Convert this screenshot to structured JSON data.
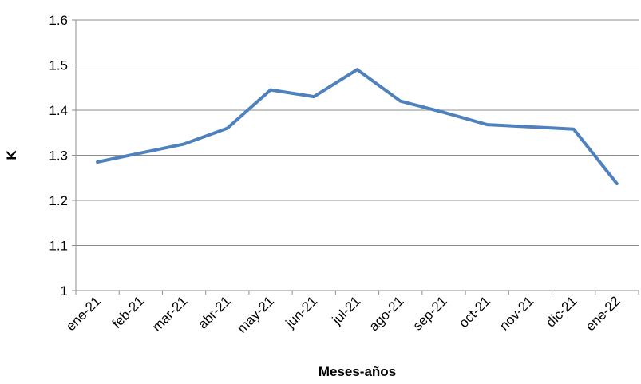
{
  "chart_data": {
    "type": "line",
    "title": "",
    "xlabel": "Meses-años",
    "ylabel": "K",
    "categories": [
      "ene-21",
      "feb-21",
      "mar-21",
      "abr-21",
      "may-21",
      "jun-21",
      "jul-21",
      "ago-21",
      "sep-21",
      "oct-21",
      "nov-21",
      "dic-21",
      "ene-22"
    ],
    "series": [
      {
        "name": "",
        "color": "#4f81bd",
        "values": [
          1.285,
          1.305,
          1.325,
          1.36,
          1.445,
          1.43,
          1.49,
          1.42,
          1.395,
          1.368,
          1.363,
          1.358,
          1.237
        ]
      }
    ],
    "ylim": [
      1,
      1.6
    ],
    "yticks": [
      "1",
      "1.1",
      "1.2",
      "1.3",
      "1.4",
      "1.5",
      "1.6"
    ],
    "grid": true,
    "legend": "none"
  }
}
